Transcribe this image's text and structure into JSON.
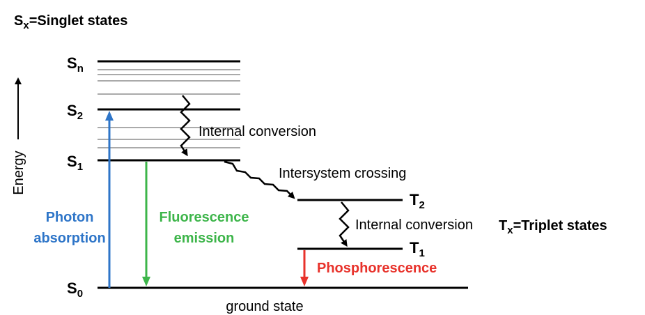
{
  "legend": {
    "singlet": {
      "symbol": "S",
      "sub": "x",
      "text": "=Singlet states"
    },
    "triplet": {
      "symbol": "T",
      "sub": "x",
      "text": "=Triplet states"
    }
  },
  "axis": {
    "label": "Energy"
  },
  "levels": [
    {
      "symbol": "S",
      "sub": "n"
    },
    {
      "symbol": "S",
      "sub": "2"
    },
    {
      "symbol": "S",
      "sub": "1"
    },
    {
      "symbol": "S",
      "sub": "0"
    },
    {
      "symbol": "T",
      "sub": "2"
    },
    {
      "symbol": "T",
      "sub": "1"
    }
  ],
  "ground_label": "ground state",
  "processes": {
    "absorption": [
      "Photon",
      "absorption"
    ],
    "fluorescence": [
      "Fluorescence",
      "emission"
    ],
    "phosphorescence": "Phosphorescence",
    "ic1": "Internal conversion",
    "isc": "Intersystem crossing",
    "ic2": "Internal conversion"
  }
}
